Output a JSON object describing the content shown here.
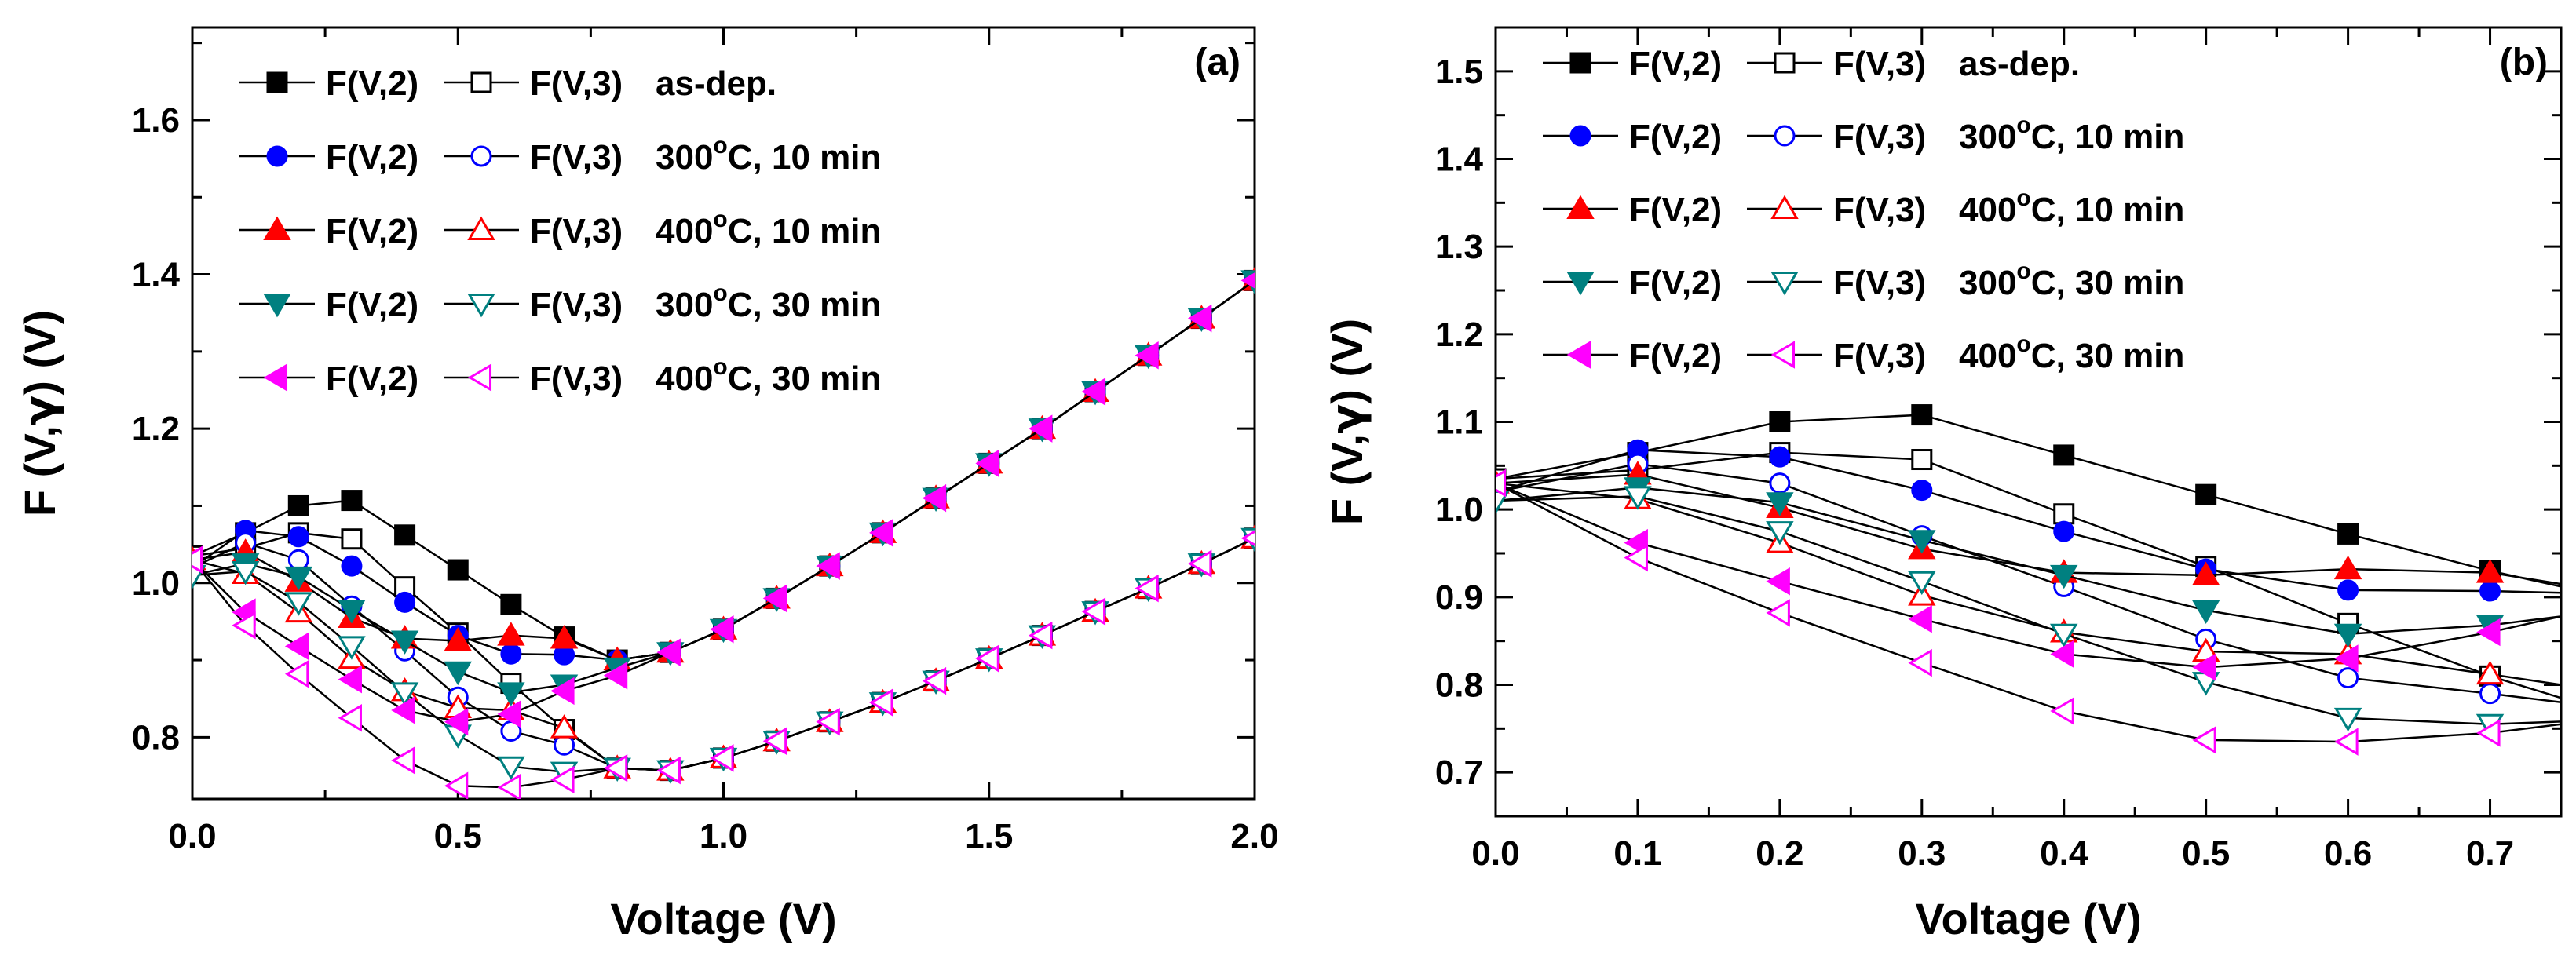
{
  "chart_data": [
    {
      "type": "line",
      "panel_label": "(a)",
      "xlabel": "Voltage (V)",
      "ylabel": "F (V,γ) (V)",
      "ylabel_parts": [
        "F (V,",
        "γ",
        ") (V)"
      ],
      "xlim": [
        0,
        2.0
      ],
      "ylim": [
        0.72,
        1.72
      ],
      "x_ticks": [
        0.0,
        0.5,
        1.0,
        1.5,
        2.0
      ],
      "x_tick_labels": [
        "0.0",
        "0.5",
        "1.0",
        "1.5",
        "2.0"
      ],
      "y_ticks": [
        0.8,
        1.0,
        1.2,
        1.4,
        1.6
      ],
      "y_tick_labels": [
        "0.8",
        "1.0",
        "1.2",
        "1.4",
        "1.6"
      ],
      "legend": [
        {
          "f2": "F(V,2)",
          "f3": "F(V,3)",
          "cond": "as-dep.",
          "color": "#000000",
          "marker": "square"
        },
        {
          "f2": "F(V,2)",
          "f3": "F(V,3)",
          "cond_main": "300",
          "cond_sup": "o",
          "cond_rest": "C, 10 min",
          "color": "#0000ff",
          "marker": "circle"
        },
        {
          "f2": "F(V,2)",
          "f3": "F(V,3)",
          "cond_main": "400",
          "cond_sup": "o",
          "cond_rest": "C, 10 min",
          "color": "#ff0000",
          "marker": "triangle-up"
        },
        {
          "f2": "F(V,2)",
          "f3": "F(V,3)",
          "cond_main": "300",
          "cond_sup": "o",
          "cond_rest": "C, 30 min",
          "color": "#008080",
          "marker": "triangle-down"
        },
        {
          "f2": "F(V,2)",
          "f3": "F(V,3)",
          "cond_main": "400",
          "cond_sup": "o",
          "cond_rest": "C, 30 min",
          "color": "#ff00ff",
          "marker": "triangle-left"
        }
      ],
      "common_tail": {
        "x": [
          0.8,
          0.9,
          1.0,
          1.1,
          1.2,
          1.3,
          1.4,
          1.5,
          1.6,
          1.7,
          1.8,
          1.9,
          2.0
        ],
        "F2": [
          0.9,
          0.91,
          0.94,
          0.98,
          1.022,
          1.065,
          1.11,
          1.155,
          1.2,
          1.248,
          1.295,
          1.343,
          1.392
        ],
        "F3": [
          0.76,
          0.757,
          0.773,
          0.795,
          0.82,
          0.845,
          0.873,
          0.902,
          0.932,
          0.963,
          0.993,
          1.025,
          1.058
        ]
      },
      "series": [
        {
          "name": "as-dep.",
          "color": "#000000",
          "marker": "square",
          "x": [
            0,
            0.1,
            0.2,
            0.3,
            0.4,
            0.5,
            0.6,
            0.7,
            0.8
          ],
          "F2": [
            1.035,
            1.065,
            1.1,
            1.107,
            1.062,
            1.017,
            0.972,
            0.93,
            0.9
          ],
          "F3": [
            1.035,
            1.045,
            1.065,
            1.057,
            0.995,
            0.935,
            0.87,
            0.81,
            0.76
          ]
        },
        {
          "name": "300C, 10 min",
          "color": "#0000ff",
          "marker": "circle",
          "x": [
            0,
            0.1,
            0.2,
            0.3,
            0.4,
            0.5,
            0.6,
            0.7,
            0.8
          ],
          "F2": [
            1.02,
            1.068,
            1.06,
            1.022,
            0.975,
            0.932,
            0.908,
            0.907,
            0.9
          ],
          "F3": [
            1.02,
            1.052,
            1.03,
            0.97,
            0.912,
            0.852,
            0.808,
            0.79,
            0.76
          ]
        },
        {
          "name": "400C, 10 min",
          "color": "#ff0000",
          "marker": "triangle-up",
          "x": [
            0,
            0.1,
            0.2,
            0.3,
            0.4,
            0.5,
            0.6,
            0.7,
            0.8
          ],
          "F2": [
            1.03,
            1.04,
            1.002,
            0.955,
            0.928,
            0.925,
            0.932,
            0.928,
            0.9
          ],
          "F3": [
            1.03,
            1.012,
            0.962,
            0.902,
            0.86,
            0.838,
            0.835,
            0.812,
            0.76
          ]
        },
        {
          "name": "300C, 30 min",
          "color": "#008080",
          "marker": "triangle-down",
          "x": [
            0,
            0.1,
            0.2,
            0.3,
            0.4,
            0.5,
            0.6,
            0.7,
            0.8
          ],
          "F2": [
            1.01,
            1.025,
            1.008,
            0.965,
            0.925,
            0.885,
            0.858,
            0.868,
            0.89
          ],
          "F3": [
            1.01,
            1.015,
            0.975,
            0.918,
            0.858,
            0.803,
            0.762,
            0.755,
            0.76
          ]
        },
        {
          "name": "400C, 30 min",
          "color": "#ff00ff",
          "marker": "triangle-left",
          "x": [
            0,
            0.1,
            0.2,
            0.3,
            0.4,
            0.5,
            0.6,
            0.7,
            0.8
          ],
          "F2": [
            1.03,
            0.962,
            0.918,
            0.875,
            0.835,
            0.82,
            0.83,
            0.86,
            0.88
          ],
          "F3": [
            1.03,
            0.945,
            0.882,
            0.825,
            0.77,
            0.737,
            0.735,
            0.745,
            0.76
          ]
        }
      ]
    },
    {
      "type": "line",
      "panel_label": "(b)",
      "xlabel": "Voltage (V)",
      "ylabel": "F (V,γ) (V)",
      "ylabel_parts": [
        "F (V,",
        "γ",
        ") (V)"
      ],
      "xlim": [
        0,
        0.75
      ],
      "ylim": [
        0.65,
        1.55
      ],
      "x_ticks": [
        0.0,
        0.1,
        0.2,
        0.3,
        0.4,
        0.5,
        0.6,
        0.7
      ],
      "x_tick_labels": [
        "0.0",
        "0.1",
        "0.2",
        "0.3",
        "0.4",
        "0.5",
        "0.6",
        "0.7"
      ],
      "y_ticks": [
        0.7,
        0.8,
        0.9,
        1.0,
        1.1,
        1.2,
        1.3,
        1.4,
        1.5
      ],
      "y_tick_labels": [
        "0.7",
        "0.8",
        "0.9",
        "1.0",
        "1.1",
        "1.2",
        "1.3",
        "1.4",
        "1.5"
      ],
      "legend": [
        {
          "f2": "F(V,2)",
          "f3": "F(V,3)",
          "cond": "as-dep.",
          "color": "#000000",
          "marker": "square"
        },
        {
          "f2": "F(V,2)",
          "f3": "F(V,3)",
          "cond_main": "300",
          "cond_sup": "o",
          "cond_rest": "C, 10 min",
          "color": "#0000ff",
          "marker": "circle"
        },
        {
          "f2": "F(V,2)",
          "f3": "F(V,3)",
          "cond_main": "400",
          "cond_sup": "o",
          "cond_rest": "C, 10 min",
          "color": "#ff0000",
          "marker": "triangle-up"
        },
        {
          "f2": "F(V,2)",
          "f3": "F(V,3)",
          "cond_main": "300",
          "cond_sup": "o",
          "cond_rest": "C, 30 min",
          "color": "#008080",
          "marker": "triangle-down"
        },
        {
          "f2": "F(V,2)",
          "f3": "F(V,3)",
          "cond_main": "400",
          "cond_sup": "o",
          "cond_rest": "C, 30 min",
          "color": "#ff00ff",
          "marker": "triangle-left"
        }
      ],
      "series": [
        {
          "name": "as-dep.",
          "color": "#000000",
          "marker": "square",
          "x": [
            0,
            0.1,
            0.2,
            0.3,
            0.4,
            0.5,
            0.6,
            0.7,
            0.75
          ],
          "F2": [
            1.035,
            1.065,
            1.1,
            1.108,
            1.062,
            1.017,
            0.972,
            0.93,
            0.912
          ],
          "F3": [
            1.035,
            1.045,
            1.065,
            1.057,
            0.995,
            0.935,
            0.87,
            0.81,
            0.785
          ]
        },
        {
          "name": "300C, 10 min",
          "color": "#0000ff",
          "marker": "circle",
          "x": [
            0,
            0.1,
            0.2,
            0.3,
            0.4,
            0.5,
            0.6,
            0.7,
            0.75
          ],
          "F2": [
            1.02,
            1.068,
            1.06,
            1.022,
            0.975,
            0.932,
            0.908,
            0.907,
            0.905
          ],
          "F3": [
            1.02,
            1.052,
            1.03,
            0.97,
            0.912,
            0.852,
            0.808,
            0.79,
            0.78
          ]
        },
        {
          "name": "400C, 10 min",
          "color": "#ff0000",
          "marker": "triangle-up",
          "x": [
            0,
            0.1,
            0.2,
            0.3,
            0.4,
            0.5,
            0.6,
            0.7,
            0.75
          ],
          "F2": [
            1.03,
            1.04,
            1.002,
            0.955,
            0.928,
            0.925,
            0.932,
            0.928,
            0.915
          ],
          "F3": [
            1.03,
            1.012,
            0.962,
            0.902,
            0.86,
            0.838,
            0.835,
            0.812,
            0.8
          ]
        },
        {
          "name": "300C, 30 min",
          "color": "#008080",
          "marker": "triangle-down",
          "x": [
            0,
            0.1,
            0.2,
            0.3,
            0.4,
            0.5,
            0.6,
            0.7,
            0.75
          ],
          "F2": [
            1.01,
            1.025,
            1.008,
            0.965,
            0.925,
            0.885,
            0.858,
            0.868,
            0.878
          ],
          "F3": [
            1.01,
            1.015,
            0.975,
            0.918,
            0.858,
            0.803,
            0.762,
            0.755,
            0.758
          ]
        },
        {
          "name": "400C, 30 min",
          "color": "#ff00ff",
          "marker": "triangle-left",
          "x": [
            0,
            0.1,
            0.2,
            0.3,
            0.4,
            0.5,
            0.6,
            0.7,
            0.75
          ],
          "F2": [
            1.03,
            0.962,
            0.918,
            0.875,
            0.835,
            0.82,
            0.83,
            0.86,
            0.878
          ],
          "F3": [
            1.03,
            0.945,
            0.882,
            0.825,
            0.77,
            0.737,
            0.735,
            0.745,
            0.755
          ]
        }
      ]
    }
  ]
}
